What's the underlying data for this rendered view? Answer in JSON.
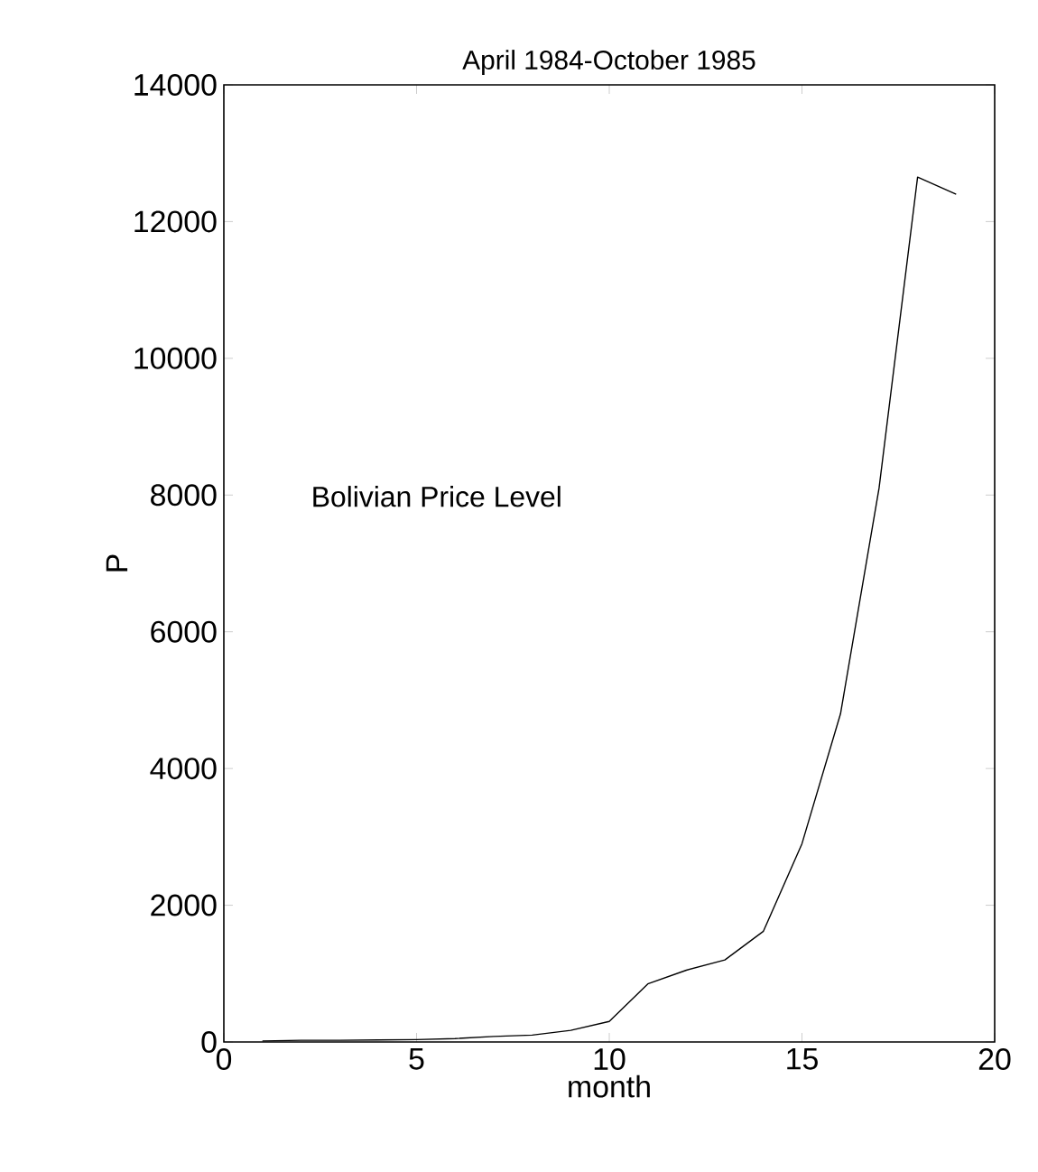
{
  "chart_data": {
    "type": "line",
    "title": "April 1984-October 1985",
    "xlabel": "month",
    "ylabel": "P",
    "annotations": [
      "Bolivian Price Level"
    ],
    "x": [
      1,
      2,
      3,
      4,
      5,
      6,
      7,
      8,
      9,
      10,
      11,
      12,
      13,
      14,
      15,
      16,
      17,
      18,
      19
    ],
    "series": [
      {
        "color": "#000000",
        "values": [
          15,
          25,
          25,
          30,
          35,
          50,
          80,
          100,
          170,
          300,
          850,
          1050,
          1200,
          1620,
          2900,
          4800,
          8100,
          12650,
          12400
        ]
      }
    ],
    "xlim": [
      0,
      20
    ],
    "ylim": [
      0,
      14000
    ],
    "xticks": [
      0,
      5,
      10,
      15,
      20
    ],
    "yticks": [
      0,
      2000,
      4000,
      6000,
      8000,
      10000,
      12000,
      14000
    ],
    "grid": false,
    "marker": "none",
    "line_style": "solid"
  }
}
